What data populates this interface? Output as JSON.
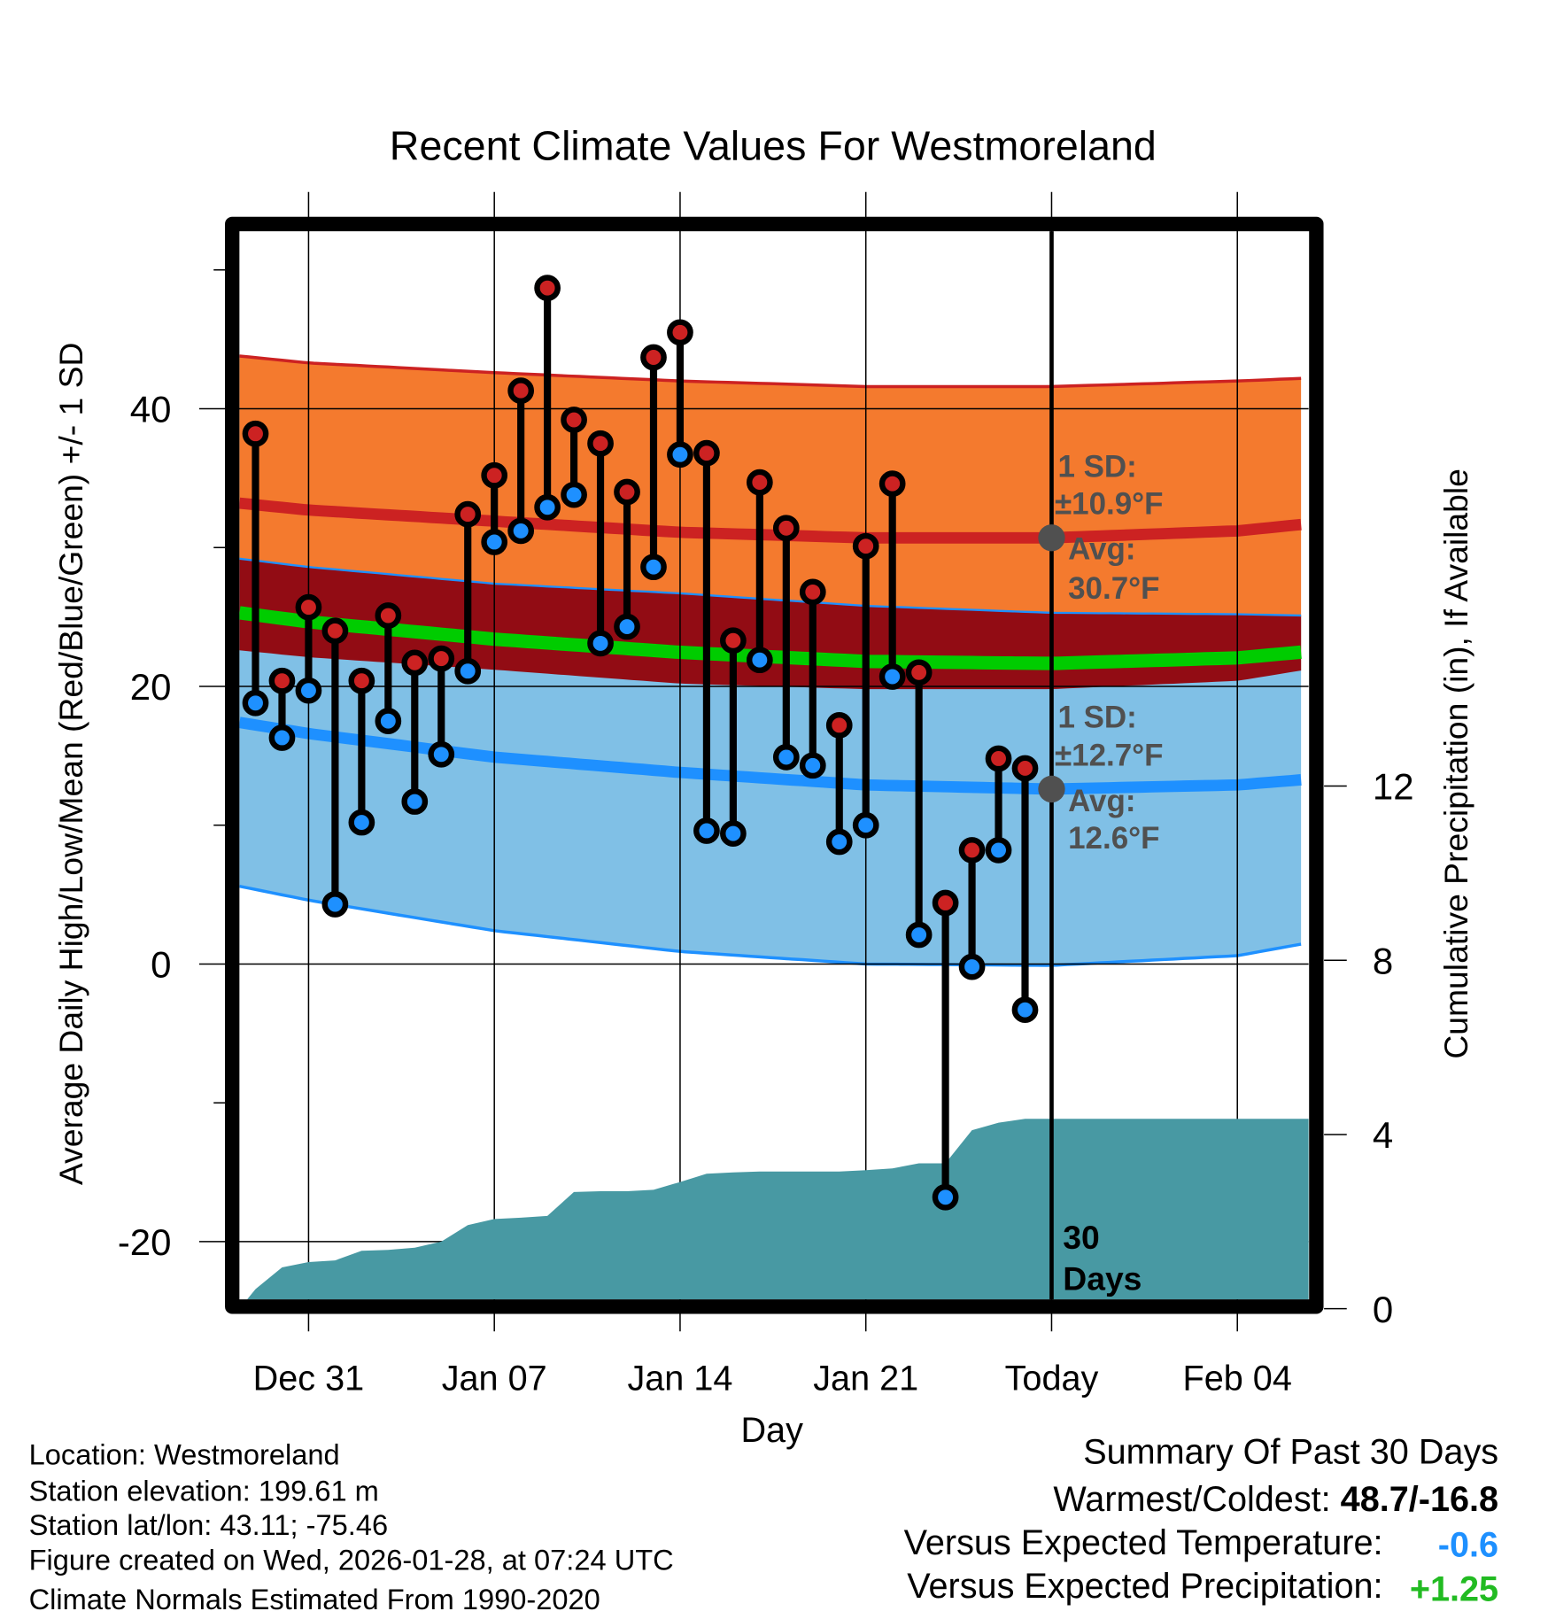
{
  "chart_data": {
    "type": "line",
    "title": "Recent Climate Values For Westmoreland",
    "xlabel": "Day",
    "ylabel": "Average Daily High/Low/Mean (Red/Blue/Green) +/- 1 SD",
    "y2label": "Cumulative Precipitation (in), If Available",
    "ylim": [
      -24.2,
      52.8
    ],
    "y2lim": [
      0,
      24.7
    ],
    "xlim_days_from_dec31": [
      -2.6,
      37.6
    ],
    "yticks": [
      "40",
      "20",
      "0",
      "-20"
    ],
    "ytick_values": [
      40,
      20,
      0,
      -20
    ],
    "y2ticks": [
      "12",
      "8",
      "4",
      "0"
    ],
    "y2tick_values": [
      12,
      8,
      4,
      0
    ],
    "xticks": [
      "Dec 31",
      "Jan 07",
      "Jan 14",
      "Jan 21",
      "Today",
      "Feb 04"
    ],
    "xtick_days": [
      0,
      7,
      14,
      21,
      28,
      35
    ],
    "grid": true,
    "days": [
      "Dec 29",
      "Dec 30",
      "Dec 31",
      "Jan 01",
      "Jan 02",
      "Jan 03",
      "Jan 04",
      "Jan 05",
      "Jan 06",
      "Jan 07",
      "Jan 08",
      "Jan 09",
      "Jan 10",
      "Jan 11",
      "Jan 12",
      "Jan 13",
      "Jan 14",
      "Jan 15",
      "Jan 16",
      "Jan 17",
      "Jan 18",
      "Jan 19",
      "Jan 20",
      "Jan 21",
      "Jan 22",
      "Jan 23",
      "Jan 24",
      "Jan 25",
      "Jan 26",
      "Jan 27"
    ],
    "day_offsets": [
      -2,
      -1,
      0,
      1,
      2,
      3,
      4,
      5,
      6,
      7,
      8,
      9,
      10,
      11,
      12,
      13,
      14,
      15,
      16,
      17,
      18,
      19,
      20,
      21,
      22,
      23,
      24,
      25,
      26,
      27
    ],
    "highs": [
      38.2,
      20.4,
      25.7,
      24.0,
      20.4,
      25.1,
      21.7,
      22.0,
      32.4,
      35.2,
      41.3,
      48.7,
      39.2,
      37.5,
      34.0,
      43.7,
      45.5,
      36.8,
      23.3,
      34.7,
      31.4,
      26.8,
      17.2,
      30.1,
      34.6,
      21.0,
      4.4,
      8.2,
      14.8,
      14.1
    ],
    "lows": [
      18.8,
      16.3,
      19.7,
      4.3,
      10.2,
      17.5,
      11.7,
      15.1,
      21.1,
      30.4,
      31.2,
      32.9,
      33.8,
      23.1,
      24.3,
      28.6,
      36.7,
      9.6,
      9.4,
      21.9,
      14.9,
      14.3,
      8.8,
      10.0,
      20.7,
      2.1,
      -16.8,
      -0.2,
      8.2,
      -3.3
    ],
    "precip_cumulative": [
      0.45,
      0.95,
      1.07,
      1.11,
      1.33,
      1.35,
      1.4,
      1.54,
      1.92,
      2.06,
      2.09,
      2.13,
      2.68,
      2.7,
      2.7,
      2.73,
      2.91,
      3.1,
      3.13,
      3.15,
      3.15,
      3.15,
      3.15,
      3.18,
      3.22,
      3.34,
      3.34,
      4.1,
      4.27,
      4.36
    ],
    "normals": {
      "days": [
        -2.6,
        0,
        7,
        14,
        21,
        28,
        35,
        37.6
      ],
      "high_avg": [
        33.2,
        32.7,
        31.9,
        31.1,
        30.7,
        30.7,
        31.2,
        31.7
      ],
      "high_sd": [
        10.6,
        10.6,
        10.7,
        10.9,
        10.9,
        10.9,
        10.8,
        10.5
      ],
      "low_avg": [
        17.4,
        16.6,
        14.9,
        13.8,
        12.9,
        12.6,
        12.9,
        13.3
      ],
      "low_sd": [
        11.8,
        12.0,
        12.5,
        12.9,
        12.9,
        12.7,
        12.3,
        11.8
      ]
    },
    "annotations": {
      "high_sd": "1 SD:",
      "high_sd_value": "±10.9°F",
      "high_avg": "Avg:",
      "high_avg_value": "30.7°F",
      "low_sd": "1 SD:",
      "low_sd_value": "±12.7°F",
      "low_avg": "Avg:",
      "low_avg_value": "12.6°F",
      "period_num": "30",
      "period_unit": "Days"
    },
    "colors": {
      "high_band": "#F47A2E",
      "high_line": "#CC2222",
      "overlap": "#920C14",
      "mean_line": "#00CC00",
      "low_band": "#80C0E6",
      "low_line": "#1E90FF",
      "precip": "#4899A3",
      "annot": "#505050",
      "high_dot": "#CC2222",
      "low_dot": "#1E90FF"
    }
  },
  "footer": {
    "location": "Location: Westmoreland",
    "elevation": "Station elevation: 199.61 m",
    "latlon": "Station lat/lon: 43.11; -75.46",
    "created": "Figure created on Wed, 2026-01-28, at 07:24 UTC",
    "normals": "Climate Normals Estimated From 1990-2020"
  },
  "summary": {
    "title": "Summary Of Past 30 Days",
    "warmest_label": "Warmest/Coldest: ",
    "warmest_value": "48.7/-16.8",
    "temp_label": "Versus Expected Temperature:",
    "temp_value": "-0.6",
    "precip_label": "Versus Expected Precipitation:",
    "precip_value": "+1.25"
  }
}
